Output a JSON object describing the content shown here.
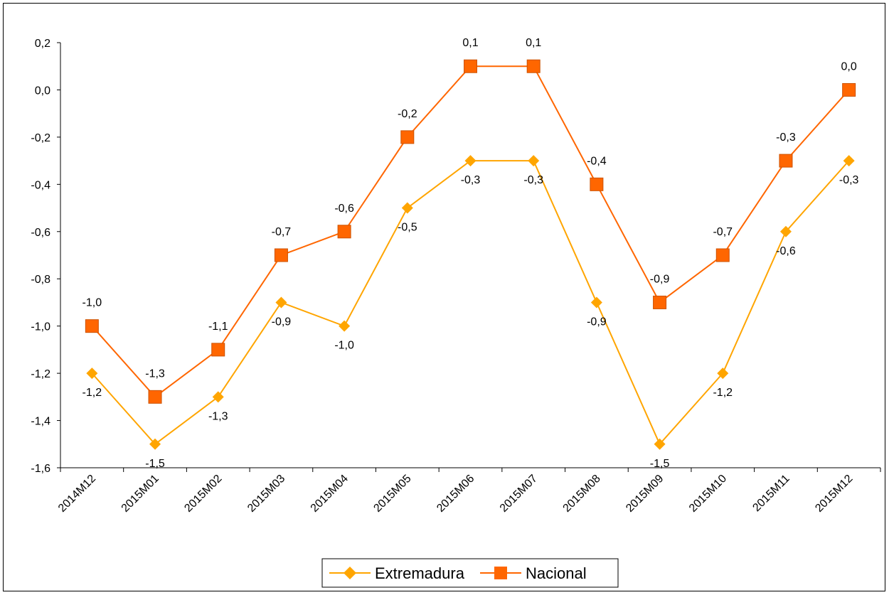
{
  "chart_data": {
    "type": "line",
    "categories": [
      "2014M12",
      "2015M01",
      "2015M02",
      "2015M03",
      "2015M04",
      "2015M05",
      "2015M06",
      "2015M07",
      "2015M08",
      "2015M09",
      "2015M10",
      "2015M11",
      "2015M12"
    ],
    "series": [
      {
        "name": "Extremadura",
        "values": [
          -1.2,
          -1.5,
          -1.3,
          -0.9,
          -1.0,
          -0.5,
          -0.3,
          -0.3,
          -0.9,
          -1.5,
          -1.2,
          -0.6,
          -0.3
        ],
        "labels": [
          "-1,2",
          "-1,5",
          "-1,3",
          "-0,9",
          "-1,0",
          "-0,5",
          "-0,3",
          "-0,3",
          "-0,9",
          "-1,5",
          "-1,2",
          "-0,6",
          "-0,3"
        ],
        "color": "#FFA500",
        "marker": "diamond",
        "label_position": "below"
      },
      {
        "name": "Nacional",
        "values": [
          -1.0,
          -1.3,
          -1.1,
          -0.7,
          -0.6,
          -0.2,
          0.1,
          0.1,
          -0.4,
          -0.9,
          -0.7,
          -0.3,
          0.0
        ],
        "labels": [
          "-1,0",
          "-1,3",
          "-1,1",
          "-0,7",
          "-0,6",
          "-0,2",
          "0,1",
          "0,1",
          "-0,4",
          "-0,9",
          "-0,7",
          "-0,3",
          "0,0"
        ],
        "color": "#FF6600",
        "marker": "square",
        "label_position": "above"
      }
    ],
    "y_ticks": [
      "0,2",
      "0,0",
      "-0,2",
      "-0,4",
      "-0,6",
      "-0,8",
      "-1,0",
      "-1,2",
      "-1,4",
      "-1,6"
    ],
    "ylim": [
      -1.6,
      0.2
    ],
    "y_step": 0.2,
    "grid": false,
    "legend_position": "bottom",
    "title": "",
    "xlabel": "",
    "ylabel": ""
  }
}
